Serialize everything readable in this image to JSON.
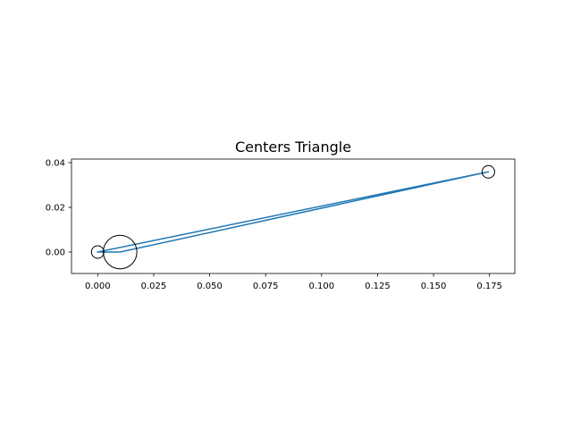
{
  "chart_data": {
    "type": "line",
    "title": "Centers Triangle",
    "xlabel": "",
    "ylabel": "",
    "xlim": [
      -0.0117,
      0.1863
    ],
    "ylim": [
      -0.0096,
      0.0416
    ],
    "xticks": [
      0.0,
      0.025,
      0.05,
      0.075,
      0.1,
      0.125,
      0.15,
      0.175
    ],
    "xtick_labels": [
      "0.000",
      "0.025",
      "0.050",
      "0.075",
      "0.100",
      "0.125",
      "0.150",
      "0.175"
    ],
    "yticks": [
      0.0,
      0.02,
      0.04
    ],
    "ytick_labels": [
      "0.00",
      "0.02",
      "0.04"
    ],
    "grid": false,
    "legend": "none",
    "series": [
      {
        "color": "#1f77b4",
        "points": [
          {
            "x": 0.0,
            "y": 0.0
          },
          {
            "x": 0.01,
            "y": 0.0
          },
          {
            "x": 0.1745,
            "y": 0.0359
          },
          {
            "x": 0.0,
            "y": 0.0
          }
        ]
      }
    ],
    "circles": [
      {
        "x": 0.0,
        "y": 0.0,
        "r": 0.0028,
        "color": "#000000"
      },
      {
        "x": 0.01,
        "y": 0.0,
        "r": 0.0075,
        "color": "#000000"
      },
      {
        "x": 0.1745,
        "y": 0.0359,
        "r": 0.0028,
        "color": "#000000"
      }
    ]
  }
}
